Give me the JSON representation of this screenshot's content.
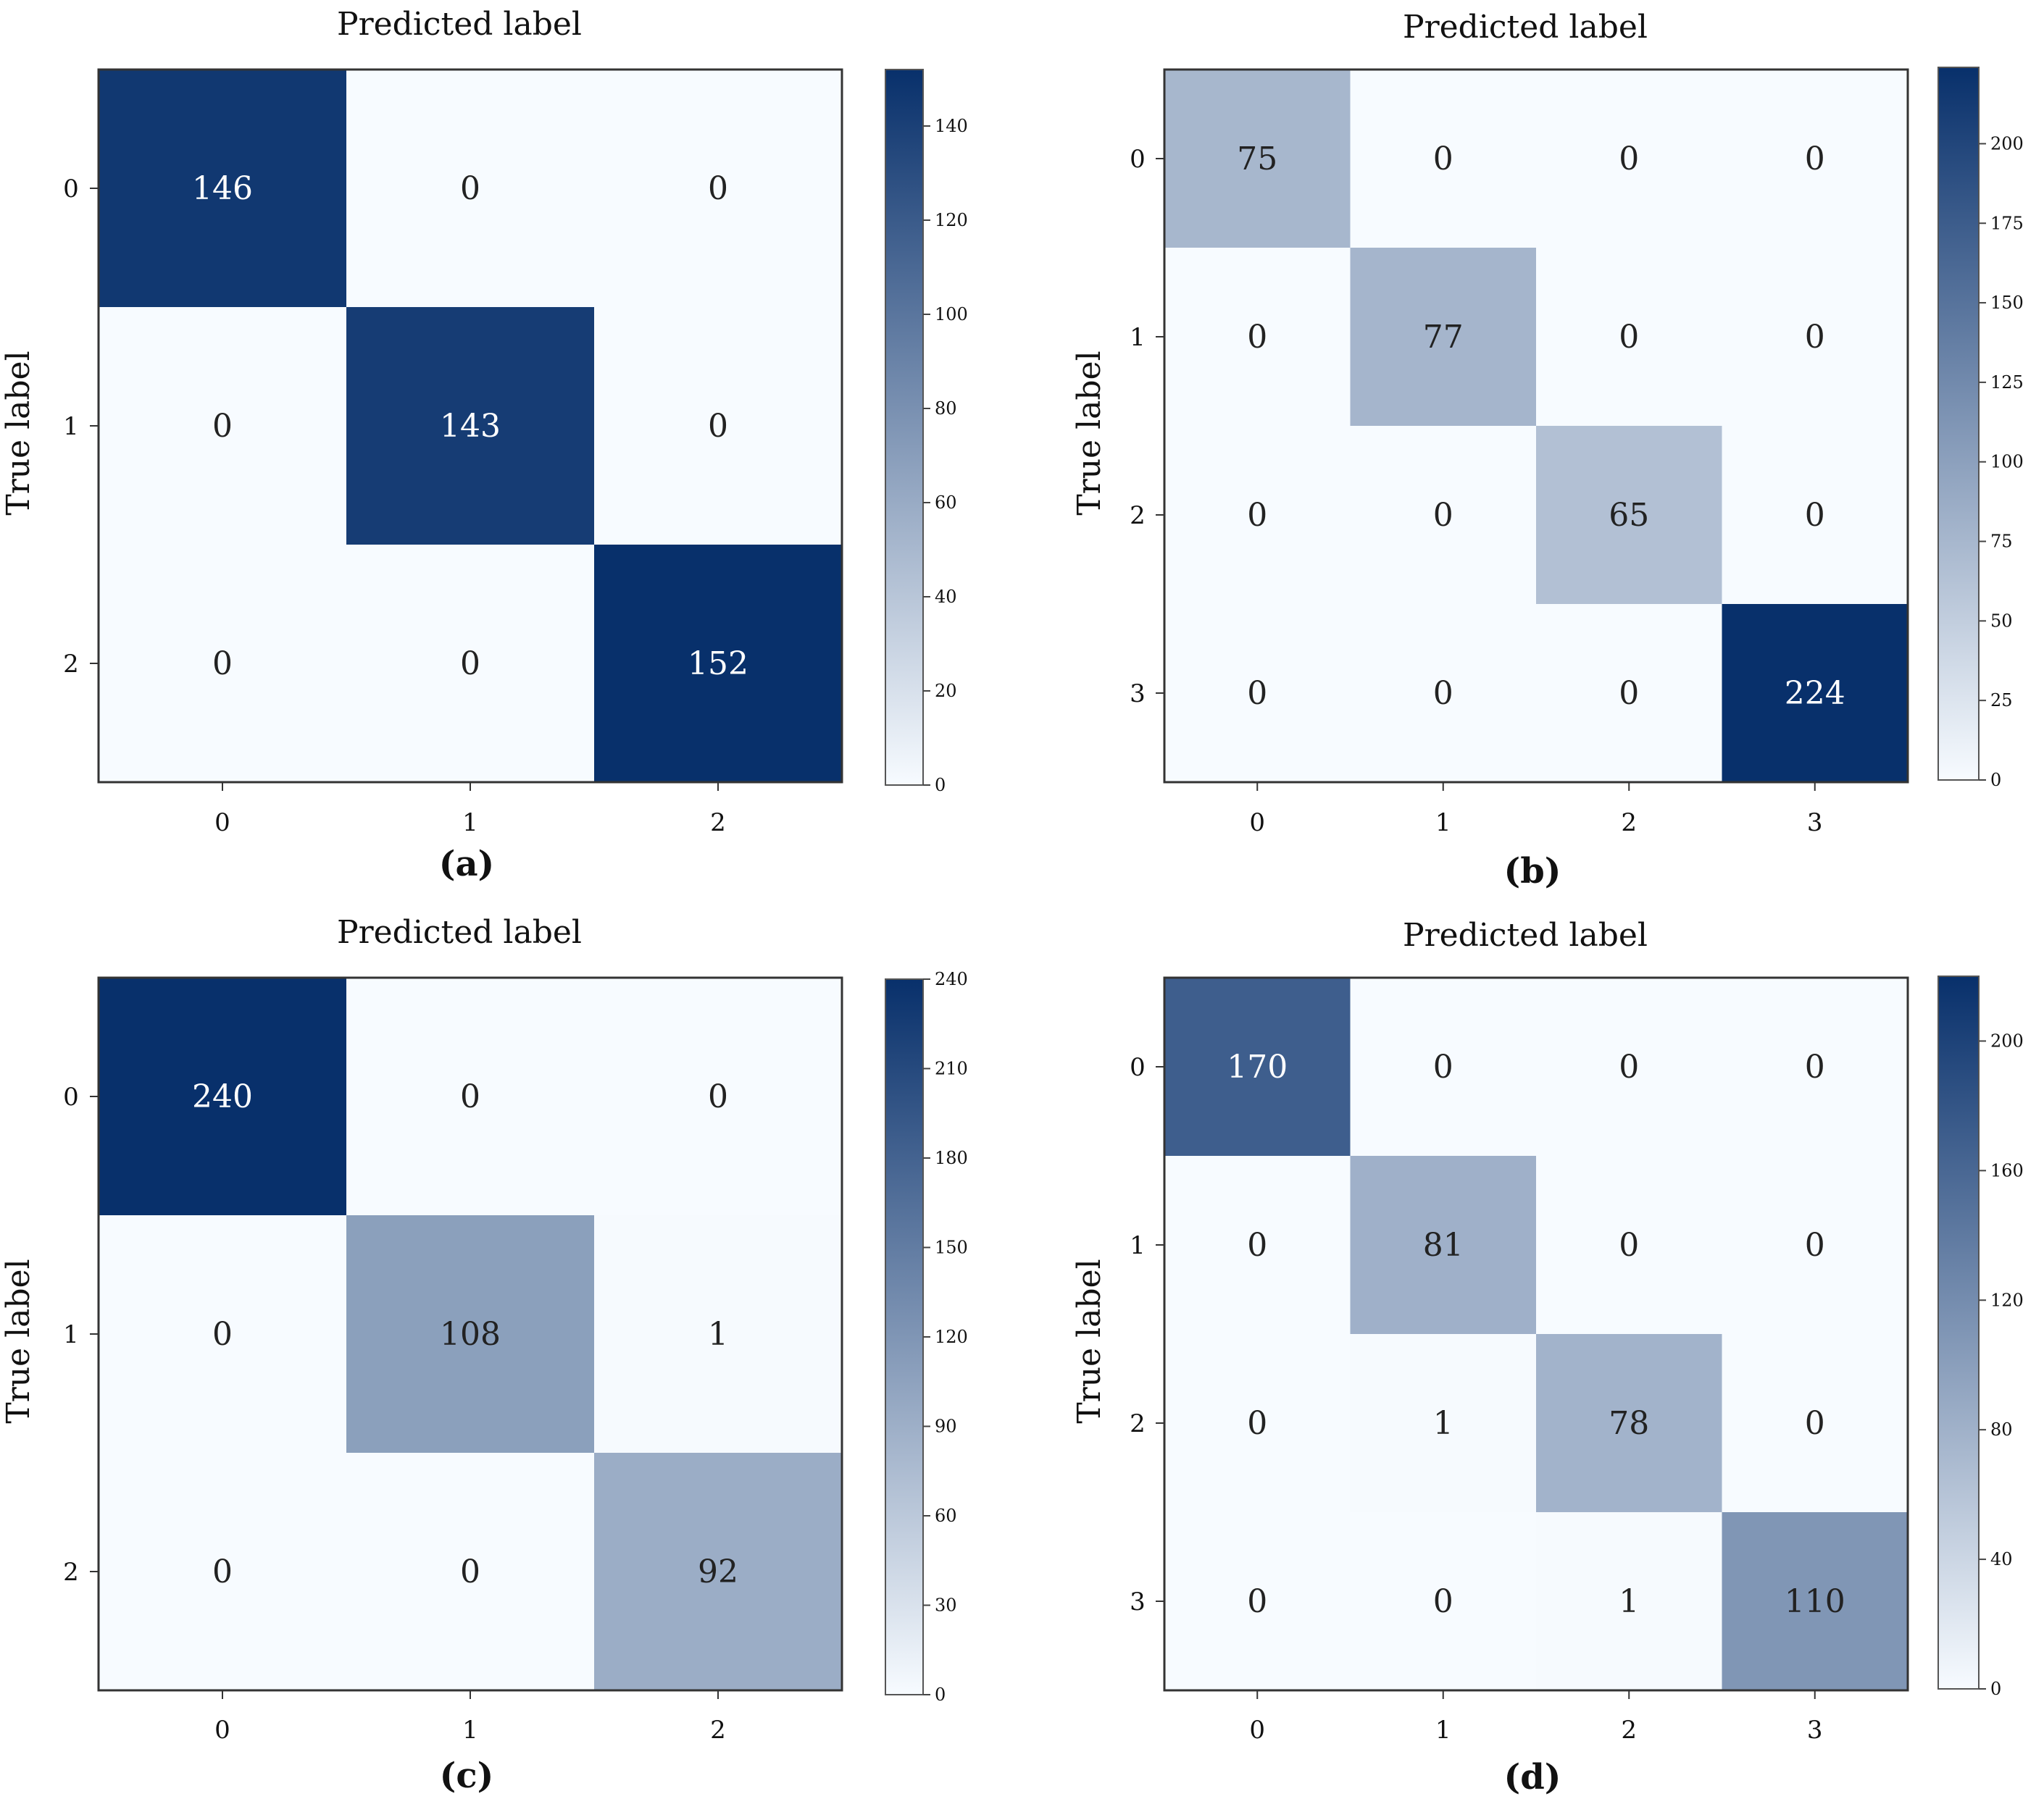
{
  "figure": {
    "colormap": {
      "low": "#f7fbff",
      "high": "#08306b"
    },
    "text_colors": {
      "dark_background": "#ffffff",
      "light_background": "#222222"
    }
  },
  "chart_data": [
    {
      "type": "heatmap",
      "panel_label": "(a)",
      "xlabel": "Predicted label",
      "ylabel": "True label",
      "x_ticks": [
        "0",
        "1",
        "2"
      ],
      "y_ticks": [
        "0",
        "1",
        "2"
      ],
      "matrix": [
        [
          146,
          0,
          0
        ],
        [
          0,
          143,
          0
        ],
        [
          0,
          0,
          152
        ]
      ],
      "colorbar": {
        "min": 0,
        "max": 152,
        "ticks": [
          "0",
          "20",
          "40",
          "60",
          "80",
          "100",
          "120",
          "140"
        ]
      }
    },
    {
      "type": "heatmap",
      "panel_label": "(b)",
      "xlabel": "Predicted label",
      "ylabel": "True label",
      "x_ticks": [
        "0",
        "1",
        "2",
        "3"
      ],
      "y_ticks": [
        "0",
        "1",
        "2",
        "3"
      ],
      "matrix": [
        [
          75,
          0,
          0,
          0
        ],
        [
          0,
          77,
          0,
          0
        ],
        [
          0,
          0,
          65,
          0
        ],
        [
          0,
          0,
          0,
          224
        ]
      ],
      "colorbar": {
        "min": 0,
        "max": 224,
        "ticks": [
          "0",
          "25",
          "50",
          "75",
          "100",
          "125",
          "150",
          "175",
          "200"
        ]
      }
    },
    {
      "type": "heatmap",
      "panel_label": "(c)",
      "xlabel": "Predicted label",
      "ylabel": "True label",
      "x_ticks": [
        "0",
        "1",
        "2"
      ],
      "y_ticks": [
        "0",
        "1",
        "2"
      ],
      "matrix": [
        [
          240,
          0,
          0
        ],
        [
          0,
          108,
          1
        ],
        [
          0,
          0,
          92
        ]
      ],
      "colorbar": {
        "min": 0,
        "max": 240,
        "ticks": [
          "0",
          "30",
          "60",
          "90",
          "120",
          "150",
          "180",
          "210",
          "240"
        ]
      }
    },
    {
      "type": "heatmap",
      "panel_label": "(d)",
      "xlabel": "Predicted label",
      "ylabel": "True label",
      "x_ticks": [
        "0",
        "1",
        "2",
        "3"
      ],
      "y_ticks": [
        "0",
        "1",
        "2",
        "3"
      ],
      "matrix": [
        [
          170,
          0,
          0,
          0
        ],
        [
          0,
          81,
          0,
          0
        ],
        [
          0,
          1,
          78,
          0
        ],
        [
          0,
          0,
          1,
          110
        ]
      ],
      "colorbar": {
        "min": 0,
        "max": 220,
        "ticks": [
          "0",
          "40",
          "80",
          "120",
          "160",
          "200"
        ]
      }
    }
  ]
}
